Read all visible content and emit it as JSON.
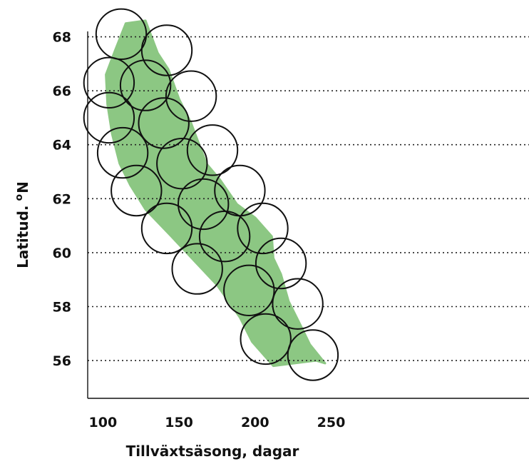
{
  "chart_data": {
    "type": "scatter",
    "xlabel": "Tillväxtsäsong, dagar",
    "ylabel": "Latitud.",
    "ylabel_unit": "o",
    "ylabel_dir": "N",
    "x_ticks": [
      100,
      150,
      200,
      250
    ],
    "y_ticks": [
      56,
      58,
      60,
      62,
      64,
      66,
      68
    ],
    "xlim": [
      90,
      380
    ],
    "ylim": [
      54.6,
      68.2
    ],
    "grid": "horizontal-dotted",
    "colors": {
      "band": "#8cc783",
      "ring": "#111111"
    },
    "band": {
      "left": [
        [
          115,
          68.5
        ],
        [
          108,
          67.5
        ],
        [
          102,
          66.6
        ],
        [
          103,
          65.5
        ],
        [
          106,
          64.4
        ],
        [
          111,
          63.3
        ],
        [
          118,
          62.5
        ],
        [
          128,
          61.6
        ],
        [
          145,
          60.6
        ],
        [
          160,
          59.7
        ],
        [
          175,
          58.8
        ],
        [
          190,
          57.6
        ],
        [
          198,
          56.7
        ],
        [
          212,
          55.8
        ],
        [
          240,
          56.0
        ]
      ],
      "right": [
        [
          128,
          68.6
        ],
        [
          136,
          67.4
        ],
        [
          143,
          66.8
        ],
        [
          150,
          65.7
        ],
        [
          158,
          64.8
        ],
        [
          168,
          63.3
        ],
        [
          177,
          62.7
        ],
        [
          188,
          61.8
        ],
        [
          200,
          61.3
        ],
        [
          211,
          60.6
        ],
        [
          212,
          59.8
        ],
        [
          217,
          59.2
        ],
        [
          222,
          58.2
        ],
        [
          230,
          57.3
        ],
        [
          236,
          56.6
        ],
        [
          246,
          55.9
        ]
      ]
    },
    "circles": [
      [
        112,
        68.1
      ],
      [
        142,
        67.5
      ],
      [
        104,
        66.3
      ],
      [
        128,
        66.2
      ],
      [
        158,
        65.8
      ],
      [
        104,
        65.0
      ],
      [
        140,
        64.8
      ],
      [
        113,
        63.7
      ],
      [
        172,
        63.8
      ],
      [
        152,
        63.3
      ],
      [
        122,
        62.3
      ],
      [
        190,
        62.3
      ],
      [
        166,
        61.8
      ],
      [
        142,
        60.9
      ],
      [
        205,
        60.9
      ],
      [
        180,
        60.6
      ],
      [
        217,
        59.6
      ],
      [
        162,
        59.4
      ],
      [
        196,
        58.6
      ],
      [
        228,
        58.1
      ],
      [
        207,
        56.8
      ],
      [
        238,
        56.2
      ]
    ],
    "circle_radius_days": 16.5
  }
}
